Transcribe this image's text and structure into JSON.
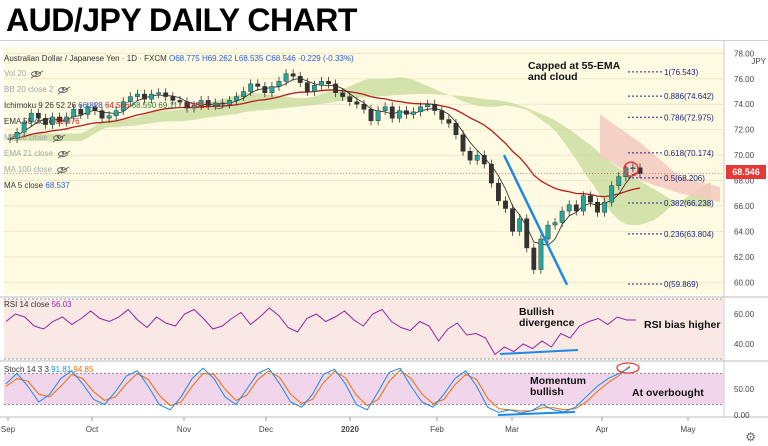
{
  "title": "AUD/JPY DAILY CHART",
  "symbol_line": {
    "name": "Australian Dollar / Japanese Yen",
    "interval": "1D",
    "source": "FXCM",
    "o": "O68.775",
    "h": "H69.262",
    "l": "L68.535",
    "c": "C68.546",
    "chg": "-0.229 (-0.33%)"
  },
  "legend": [
    {
      "label": "Vol 20",
      "values": [],
      "eye": "off"
    },
    {
      "label": "BB 20 close 2",
      "values": [],
      "eye": "off"
    },
    {
      "label": "Ichimoku 9 26 52 26",
      "values": [
        "66.828",
        "64.566",
        "68.550",
        "69.117",
        "70.517"
      ],
      "eye": "on"
    },
    {
      "label": "EMA 55 close",
      "values": [
        "69.076"
      ],
      "eye": "none"
    },
    {
      "label": "MA 50 close",
      "values": [],
      "eye": "off"
    },
    {
      "label": "EMA 21 close",
      "values": [],
      "eye": "off"
    },
    {
      "label": "MA 100 close",
      "values": [],
      "eye": "off"
    },
    {
      "label": "MA 5 close",
      "values": [
        "68.537"
      ],
      "eye": "none"
    }
  ],
  "currency_unit": "JPY",
  "last_price": "68.546",
  "annotations": {
    "capped": "Capped at 55-EMA\nand cloud",
    "bullish_div": "Bullish\ndivergence",
    "rsi_bias": "RSI bias higher",
    "momentum": "Momentum\nbullish",
    "overbought": "At overbought"
  },
  "rsi_legend": {
    "label": "RSI 14 close",
    "value": "56.03"
  },
  "stoch_legend": {
    "label": "Stoch 14 3 3",
    "k": "91.81",
    "d": "94.85"
  },
  "x_labels": [
    "Sep",
    "Oct",
    "Nov",
    "Dec",
    "2020",
    "Feb",
    "Mar",
    "Apr",
    "May"
  ],
  "colors": {
    "candle_up": "#26a69a",
    "candle_down": "#333333",
    "ema55": "#b71c1c",
    "ma5": "#222222",
    "cloud_green": "#c5d99a",
    "cloud_red": "#f3c9c0",
    "trendline": "#1e88e5",
    "rsi_line": "#8e24aa",
    "stoch_k": "#1e88e5",
    "stoch_d": "#ef6c00",
    "price_tag": "#e53935"
  },
  "chart_data": [
    {
      "type": "line",
      "title": "AUD/JPY DAILY CHART",
      "panel": "price",
      "y_ticks": [
        60,
        62,
        64,
        66,
        68,
        70,
        72,
        74,
        76,
        78
      ],
      "ylim": [
        59,
        78.5
      ],
      "x_ticks": [
        "Sep",
        "Oct",
        "Nov",
        "Dec",
        "2020",
        "Feb",
        "Mar",
        "Apr",
        "May"
      ],
      "series": [
        {
          "name": "AUD/JPY",
          "values": [
            71.3,
            71.8,
            72.6,
            73.3,
            72.9,
            72.4,
            73.0,
            72.6,
            73.0,
            73.6,
            73.2,
            73.8,
            73.5,
            72.9,
            73.1,
            73.5,
            74.2,
            74.6,
            74.8,
            74.4,
            74.8,
            74.9,
            74.6,
            74.3,
            74.2,
            73.7,
            73.9,
            74.3,
            73.9,
            74.1,
            74.0,
            74.3,
            74.6,
            75.0,
            75.6,
            75.4,
            74.9,
            75.4,
            75.8,
            76.4,
            76.2,
            75.7,
            75.0,
            75.5,
            75.8,
            75.6,
            74.9,
            74.6,
            74.2,
            74.0,
            73.6,
            72.7,
            73.5,
            73.8,
            72.9,
            73.5,
            73.2,
            73.4,
            73.8,
            74.0,
            73.5,
            72.8,
            72.5,
            71.6,
            70.3,
            69.6,
            70.0,
            69.3,
            67.8,
            66.4,
            65.8,
            64.0,
            65.0,
            62.7,
            61.0,
            63.4,
            64.5,
            64.7,
            65.6,
            66.1,
            65.6,
            66.8,
            66.3,
            65.5,
            66.3,
            67.6,
            68.3,
            69.0,
            69.0,
            68.55
          ]
        }
      ],
      "fibonacci": [
        {
          "label": "1(76.543)",
          "value": 76.543
        },
        {
          "label": "0.886(74.642)",
          "value": 74.642
        },
        {
          "label": "0.786(72.975)",
          "value": 72.975
        },
        {
          "label": "0.618(70.174)",
          "value": 70.174
        },
        {
          "label": "0.5(68.206)",
          "value": 68.206
        },
        {
          "label": "0.382(66.238)",
          "value": 66.238
        },
        {
          "label": "0.236(63.804)",
          "value": 63.804
        },
        {
          "label": "0(59.869)",
          "value": 59.869
        }
      ]
    },
    {
      "type": "line",
      "panel": "rsi",
      "y_ticks": [
        40,
        60
      ],
      "ylim": [
        30,
        70
      ],
      "series": [
        {
          "name": "RSI 14 close",
          "values": [
            55,
            60,
            58,
            52,
            50,
            55,
            58,
            53,
            57,
            62,
            57,
            55,
            58,
            63,
            56,
            51,
            58,
            54,
            52,
            60,
            63,
            57,
            50,
            52,
            57,
            61,
            53,
            58,
            64,
            59,
            51,
            48,
            57,
            60,
            55,
            58,
            62,
            56,
            52,
            60,
            63,
            55,
            51,
            49,
            55,
            52,
            42,
            50,
            54,
            46,
            47,
            44,
            33,
            38,
            35,
            40,
            37,
            42,
            38,
            47,
            44,
            52,
            55,
            57,
            53,
            58,
            56,
            56.03
          ]
        }
      ]
    },
    {
      "type": "line",
      "panel": "stoch",
      "y_ticks": [
        0,
        50
      ],
      "ylim": [
        0,
        100
      ],
      "series": [
        {
          "name": "%K",
          "values": [
            60,
            80,
            55,
            25,
            40,
            70,
            85,
            60,
            30,
            20,
            45,
            75,
            85,
            55,
            20,
            10,
            35,
            70,
            90,
            70,
            35,
            20,
            50,
            80,
            90,
            60,
            25,
            15,
            40,
            78,
            88,
            60,
            20,
            10,
            45,
            82,
            90,
            55,
            25,
            15,
            40,
            70,
            85,
            55,
            15,
            5,
            10,
            4,
            8,
            20,
            10,
            6,
            15,
            35,
            55,
            70,
            80,
            91.81
          ]
        },
        {
          "name": "%D",
          "values": [
            55,
            70,
            65,
            40,
            35,
            55,
            78,
            70,
            45,
            28,
            35,
            60,
            80,
            68,
            38,
            18,
            25,
            55,
            80,
            78,
            50,
            28,
            38,
            68,
            85,
            72,
            40,
            22,
            30,
            62,
            84,
            72,
            38,
            18,
            30,
            65,
            86,
            70,
            40,
            22,
            30,
            58,
            78,
            68,
            32,
            12,
            10,
            8,
            8,
            14,
            14,
            10,
            12,
            25,
            45,
            62,
            76,
            94.85
          ]
        }
      ]
    }
  ]
}
